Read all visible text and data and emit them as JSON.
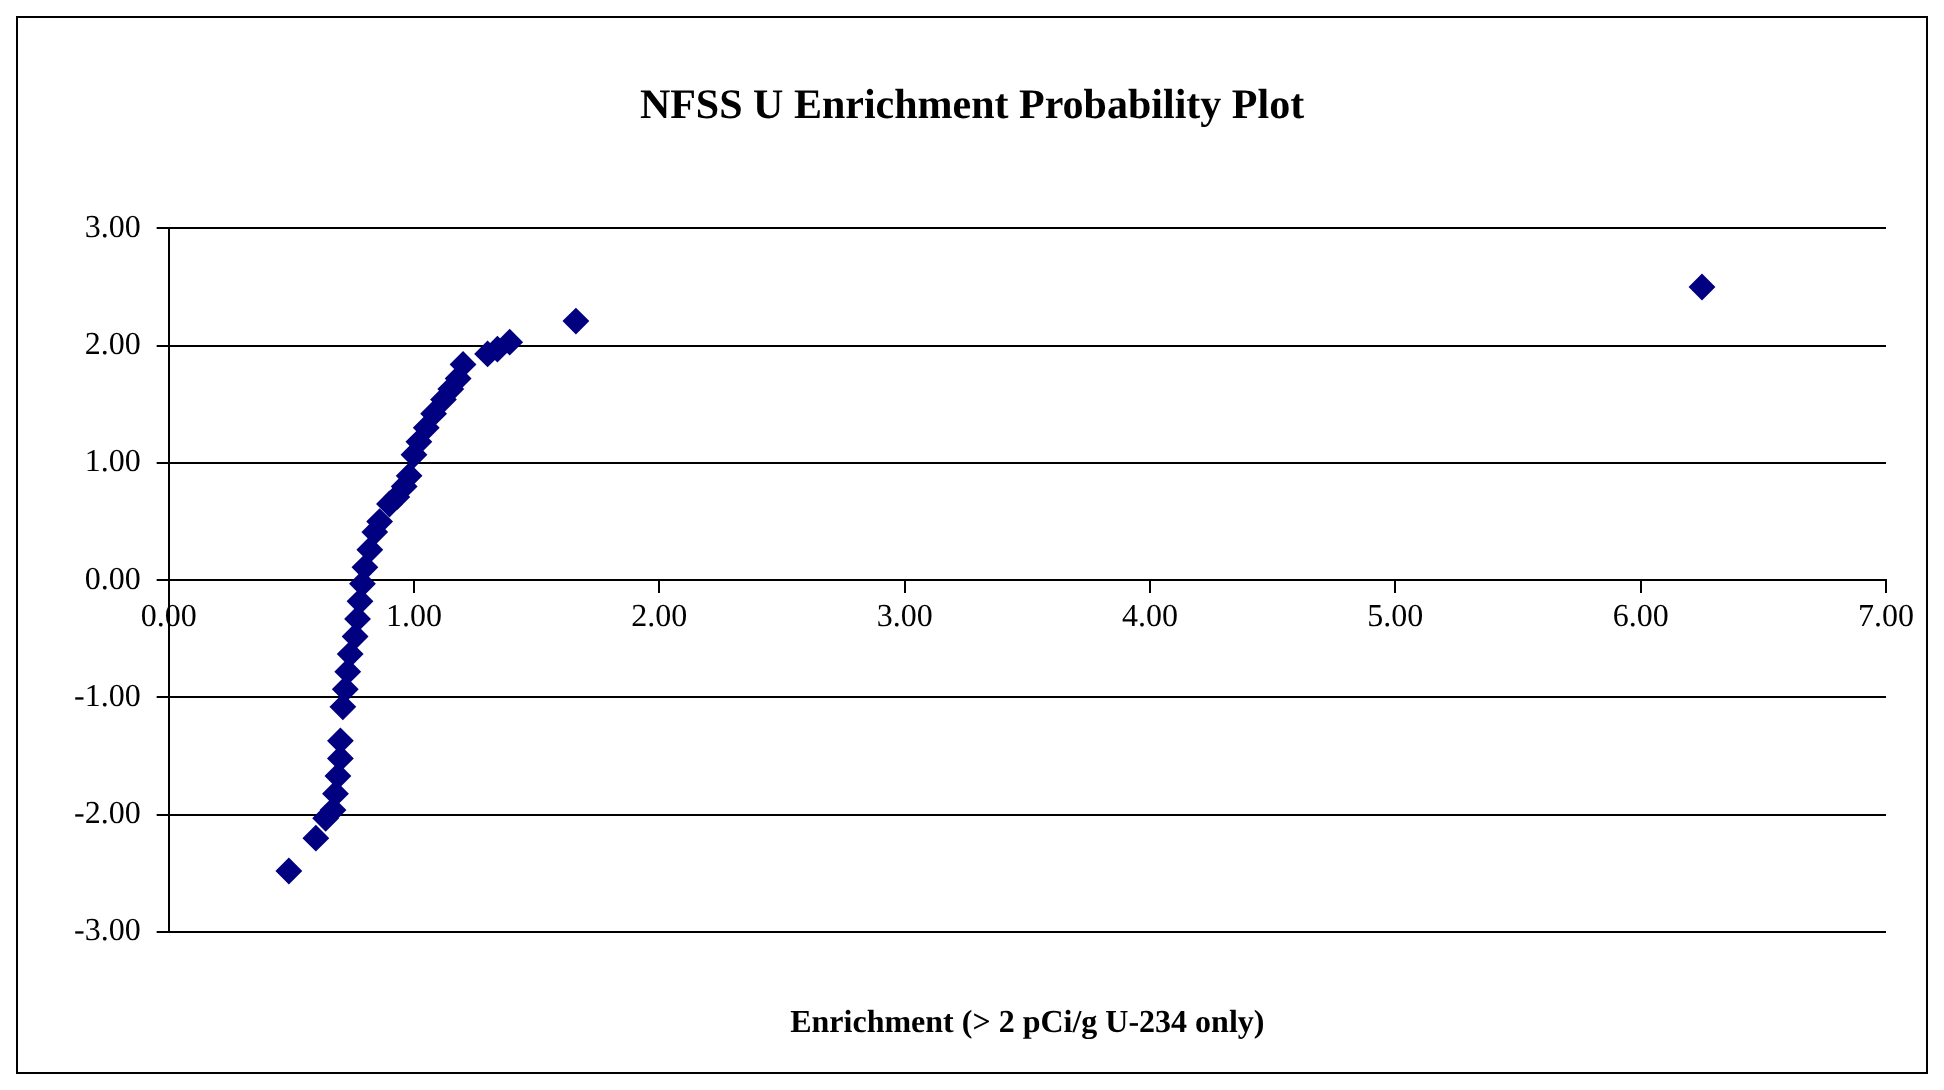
{
  "chart_data": {
    "type": "scatter",
    "title": "NFSS U Enrichment Probability Plot",
    "xlabel": "Enrichment (> 2 pCi/g U-234 only)",
    "x": [
      0.49,
      0.6,
      0.64,
      0.67,
      0.68,
      0.69,
      0.7,
      0.7,
      0.71,
      0.72,
      0.73,
      0.74,
      0.76,
      0.77,
      0.78,
      0.79,
      0.8,
      0.82,
      0.84,
      0.86,
      0.9,
      0.93,
      0.96,
      0.98,
      1.0,
      1.02,
      1.05,
      1.08,
      1.12,
      1.15,
      1.18,
      1.2,
      1.3,
      1.34,
      1.39,
      1.66,
      6.25
    ],
    "values": [
      -2.48,
      -2.2,
      -2.03,
      -1.96,
      -1.82,
      -1.67,
      -1.52,
      -1.37,
      -1.08,
      -0.93,
      -0.78,
      -0.63,
      -0.48,
      -0.33,
      -0.18,
      -0.03,
      0.11,
      0.26,
      0.41,
      0.5,
      0.65,
      0.71,
      0.8,
      0.89,
      1.07,
      1.18,
      1.3,
      1.42,
      1.54,
      1.63,
      1.72,
      1.84,
      1.93,
      1.97,
      2.03,
      2.21,
      2.5
    ],
    "color": "#000080",
    "marker": "diamond",
    "grid": "y",
    "legend": false,
    "xlim": [
      0,
      7
    ],
    "xticks": [
      {
        "value": 0,
        "label": "0.00"
      },
      {
        "value": 1,
        "label": "1.00"
      },
      {
        "value": 2,
        "label": "2.00"
      },
      {
        "value": 3,
        "label": "3.00"
      },
      {
        "value": 4,
        "label": "4.00"
      },
      {
        "value": 5,
        "label": "5.00"
      },
      {
        "value": 6,
        "label": "6.00"
      },
      {
        "value": 7,
        "label": "7.00"
      }
    ],
    "ylim": [
      -3,
      3
    ],
    "yticks": [
      {
        "value": -3,
        "label": "-3.00"
      },
      {
        "value": -2,
        "label": "-2.00"
      },
      {
        "value": -1,
        "label": "-1.00"
      },
      {
        "value": 0,
        "label": "0.00"
      },
      {
        "value": 1,
        "label": "1.00"
      },
      {
        "value": 2,
        "label": "2.00"
      },
      {
        "value": 3,
        "label": "3.00"
      }
    ]
  }
}
